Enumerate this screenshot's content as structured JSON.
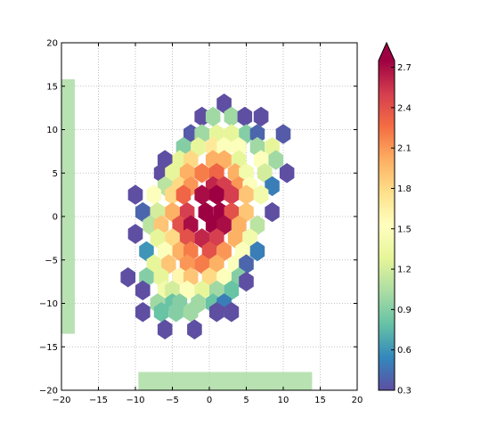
{
  "chart_data": {
    "type": "hexbin",
    "title": "",
    "xlabel": "",
    "ylabel": "",
    "xlim": [
      -20,
      20
    ],
    "ylim": [
      -20,
      20
    ],
    "xticks": [
      -20,
      -15,
      -10,
      -5,
      0,
      5,
      10,
      15,
      20
    ],
    "yticks": [
      -20,
      -15,
      -10,
      -5,
      0,
      5,
      10,
      15,
      20
    ],
    "xtick_labels": [
      "−20",
      "−15",
      "−10",
      "−5",
      "0",
      "5",
      "10",
      "15",
      "20"
    ],
    "ytick_labels": [
      "−20",
      "−15",
      "−10",
      "−5",
      "0",
      "5",
      "10",
      "15",
      "20"
    ],
    "grid": true,
    "grid_style": "dotted",
    "colormap": "Spectral_r",
    "hex_size": 1.15,
    "colorbar": {
      "vmin": 0.3,
      "vmax": 2.75,
      "extend": "max",
      "ticks": [
        0.3,
        0.6,
        0.9,
        1.2,
        1.5,
        1.8,
        2.1,
        2.4,
        2.7
      ],
      "tick_labels": [
        "0.3",
        "0.6",
        "0.9",
        "1.2",
        "1.5",
        "1.8",
        "2.1",
        "2.4",
        "2.7"
      ],
      "colors": [
        "#5e4fa2",
        "#3288bd",
        "#66c2a5",
        "#abdda4",
        "#e6f598",
        "#ffffbf",
        "#fee08b",
        "#fdae61",
        "#f46d43",
        "#d53e4f",
        "#9e0142"
      ]
    },
    "marginal_bars": [
      {
        "orientation": "vertical",
        "x_range": [
          -20,
          -18.2
        ],
        "y_range": [
          -13.5,
          15.8
        ],
        "color": "#abdda4"
      },
      {
        "orientation": "horizontal",
        "x_range": [
          -9.6,
          13.9
        ],
        "y_range": [
          -20,
          -17.9
        ],
        "color": "#abdda4"
      }
    ],
    "series": [
      {
        "bins": [
          [
            2,
            13,
            0.3
          ],
          [
            -1,
            11.5,
            0.3
          ],
          [
            0.5,
            11.5,
            1.0
          ],
          [
            3,
            11.5,
            1.0
          ],
          [
            4.8,
            11.5,
            0.3
          ],
          [
            7,
            11.5,
            0.3
          ],
          [
            -2.5,
            9.5,
            0.35
          ],
          [
            -1,
            9.5,
            1.0
          ],
          [
            1,
            9.5,
            1.3
          ],
          [
            3,
            9.5,
            1.3
          ],
          [
            5,
            9.5,
            0.9
          ],
          [
            6.5,
            9.5,
            0.4
          ],
          [
            10,
            9.5,
            0.35
          ],
          [
            -3.5,
            8,
            0.9
          ],
          [
            -1.5,
            8,
            1.3
          ],
          [
            0.5,
            8,
            1.7
          ],
          [
            2,
            8,
            1.5
          ],
          [
            4,
            8,
            1.5
          ],
          [
            6.5,
            8,
            1.0
          ],
          [
            8.5,
            8,
            1.3
          ],
          [
            -6,
            6.5,
            0.3
          ],
          [
            -4,
            6.5,
            1.3
          ],
          [
            -2.5,
            6.5,
            1.8
          ],
          [
            0.5,
            6.5,
            2.0
          ],
          [
            2,
            6.5,
            2.0
          ],
          [
            4,
            6.5,
            1.3
          ],
          [
            7,
            6.5,
            1.5
          ],
          [
            9,
            6.5,
            1.0
          ],
          [
            -6.5,
            5,
            0.3
          ],
          [
            -5,
            5,
            1.3
          ],
          [
            -3,
            5,
            2.0
          ],
          [
            -1,
            5,
            2.2
          ],
          [
            1,
            5,
            2.3
          ],
          [
            3.5,
            5,
            2.0
          ],
          [
            5,
            5,
            1.4
          ],
          [
            7.5,
            5,
            1.2
          ],
          [
            10.5,
            5,
            0.3
          ],
          [
            -6,
            3.5,
            1.1
          ],
          [
            -4,
            3.5,
            1.8
          ],
          [
            -2.5,
            3.5,
            2.1
          ],
          [
            0.5,
            3.5,
            2.6
          ],
          [
            2,
            3.5,
            2.5
          ],
          [
            4,
            3.5,
            2.1
          ],
          [
            5.5,
            3.5,
            1.5
          ],
          [
            8.5,
            3.5,
            0.5
          ],
          [
            -10,
            2.5,
            0.3
          ],
          [
            -7.5,
            2.5,
            1.5
          ],
          [
            -5,
            2.5,
            1.8
          ],
          [
            -3.5,
            2.5,
            2.3
          ],
          [
            -1,
            2.5,
            2.7
          ],
          [
            1,
            2.5,
            2.8
          ],
          [
            3,
            2.5,
            2.5
          ],
          [
            5,
            2.5,
            1.9
          ],
          [
            7,
            2.5,
            1.4
          ],
          [
            -9,
            0.5,
            0.4
          ],
          [
            -7,
            0.5,
            1.2
          ],
          [
            -5,
            0.5,
            2.0
          ],
          [
            -3,
            0.5,
            2.5
          ],
          [
            -0.5,
            0.5,
            2.9
          ],
          [
            1.5,
            0.5,
            2.8
          ],
          [
            3,
            0.5,
            2.4
          ],
          [
            5,
            0.5,
            1.9
          ],
          [
            8.5,
            0.5,
            0.3
          ],
          [
            -8,
            -1,
            1.1
          ],
          [
            -6.5,
            -1,
            1.9
          ],
          [
            -4,
            -1,
            2.4
          ],
          [
            -2.5,
            -1,
            2.7
          ],
          [
            0.5,
            -1,
            2.9
          ],
          [
            2,
            -1,
            2.7
          ],
          [
            4,
            -1,
            2.0
          ],
          [
            6.5,
            -1,
            1.1
          ],
          [
            -10,
            -2,
            0.3
          ],
          [
            -7,
            -2.5,
            1.3
          ],
          [
            -5,
            -2.5,
            1.8
          ],
          [
            -3,
            -2.5,
            2.4
          ],
          [
            -1,
            -2.5,
            2.6
          ],
          [
            1,
            -2.5,
            2.5
          ],
          [
            3.5,
            -2.5,
            2.0
          ],
          [
            5.5,
            -2.5,
            1.4
          ],
          [
            -8.5,
            -4,
            0.6
          ],
          [
            -6,
            -4,
            1.5
          ],
          [
            -4,
            -4,
            2.0
          ],
          [
            -2.5,
            -4,
            2.2
          ],
          [
            0,
            -4,
            2.4
          ],
          [
            2,
            -4,
            2.1
          ],
          [
            4.5,
            -4,
            1.5
          ],
          [
            6.5,
            -4,
            0.5
          ],
          [
            -7.5,
            -5.5,
            1.3
          ],
          [
            -5.5,
            -5.5,
            1.9
          ],
          [
            -3,
            -5.5,
            2.1
          ],
          [
            -1,
            -5.5,
            2.2
          ],
          [
            1,
            -5.5,
            2.0
          ],
          [
            3.5,
            -5.5,
            1.5
          ],
          [
            5,
            -5.5,
            0.4
          ],
          [
            -11,
            -7,
            0.3
          ],
          [
            -8.5,
            -7,
            0.9
          ],
          [
            -6.5,
            -7,
            1.3
          ],
          [
            -4,
            -7,
            1.6
          ],
          [
            -2.5,
            -7,
            1.9
          ],
          [
            0,
            -7,
            1.8
          ],
          [
            2,
            -7,
            1.5
          ],
          [
            4,
            -7,
            0.9
          ],
          [
            5,
            -7.5,
            0.3
          ],
          [
            -9,
            -8.5,
            0.3
          ],
          [
            -6,
            -8.5,
            1.4
          ],
          [
            -5,
            -8.5,
            1.2
          ],
          [
            -3,
            -8.5,
            1.5
          ],
          [
            -1,
            -8.5,
            1.3
          ],
          [
            1,
            -8.5,
            1.0
          ],
          [
            3,
            -8.5,
            0.8
          ],
          [
            -7,
            -10,
            1.0
          ],
          [
            -5,
            -10,
            0.8
          ],
          [
            -4,
            -10,
            0.9
          ],
          [
            -1.5,
            -10,
            1.0
          ],
          [
            0.5,
            -10,
            0.8
          ],
          [
            2,
            -10,
            0.5
          ],
          [
            -9,
            -11,
            0.3
          ],
          [
            -6.5,
            -11,
            0.8
          ],
          [
            -4.5,
            -11,
            0.9
          ],
          [
            -2.5,
            -11,
            1.0
          ],
          [
            1,
            -11,
            0.3
          ],
          [
            3,
            -11,
            0.3
          ],
          [
            -6,
            -13,
            0.3
          ],
          [
            -2,
            -13,
            0.3
          ]
        ]
      }
    ]
  }
}
